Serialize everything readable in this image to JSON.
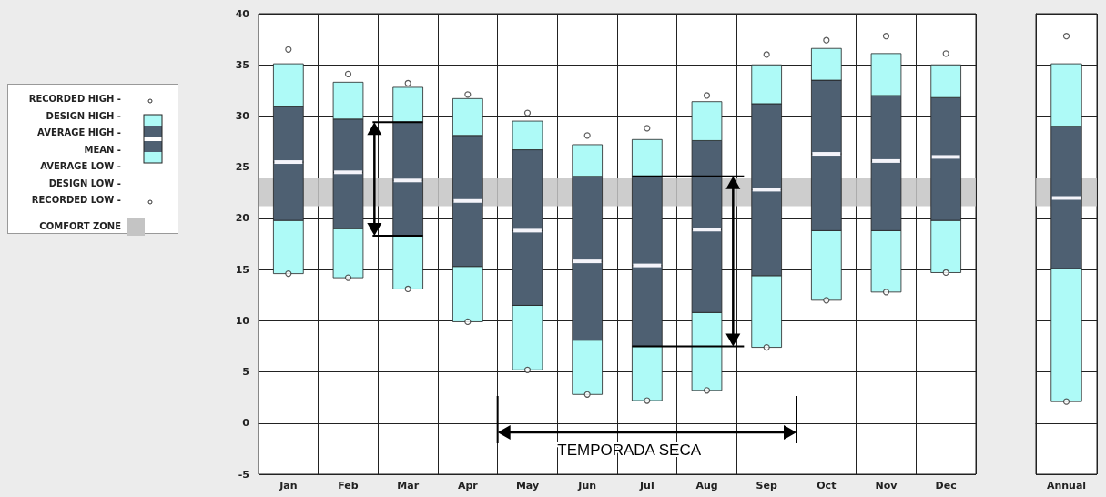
{
  "chart_data": [
    {
      "type": "bar",
      "categories": [
        "Jan",
        "Feb",
        "Mar",
        "Apr",
        "May",
        "Jun",
        "Jul",
        "Aug",
        "Sep",
        "Oct",
        "Nov",
        "Dec"
      ],
      "legend": "left",
      "grid": true,
      "series": [
        {
          "color": "#aefaf7",
          "base": [
            14.6,
            14.2,
            13.1,
            9.9,
            5.2,
            2.8,
            2.2,
            3.2,
            7.4,
            12.0,
            12.8,
            14.7
          ],
          "values": [
            5.2,
            4.8,
            5.2,
            5.4,
            6.3,
            5.3,
            5.3,
            7.6,
            7.0,
            6.8,
            6.0,
            5.1
          ]
        },
        {
          "color": "#4e6072",
          "base": [
            19.8,
            19.0,
            18.3,
            15.3,
            11.5,
            8.1,
            7.5,
            10.8,
            14.4,
            18.8,
            18.8,
            19.8
          ],
          "values": [
            5.7,
            5.5,
            5.4,
            6.4,
            7.3,
            7.7,
            7.9,
            8.1,
            8.4,
            7.5,
            6.8,
            6.2
          ]
        },
        {
          "color": "#4e6072",
          "base": [
            25.5,
            24.5,
            23.7,
            21.7,
            18.8,
            15.8,
            15.4,
            18.9,
            22.8,
            26.3,
            25.6,
            26.0
          ],
          "values": [
            5.4,
            5.2,
            5.7,
            6.4,
            7.9,
            8.3,
            8.7,
            8.7,
            8.4,
            7.2,
            6.4,
            5.8
          ]
        },
        {
          "color": "#aefaf7",
          "base": [
            30.9,
            29.7,
            29.4,
            28.1,
            26.7,
            24.1,
            24.1,
            27.6,
            31.2,
            33.5,
            32.0,
            31.8
          ],
          "values": [
            4.2,
            3.6,
            3.4,
            3.6,
            2.8,
            3.1,
            3.6,
            3.8,
            3.8,
            3.1,
            4.1,
            3.2
          ]
        },
        {
          "type": "scatter",
          "marker": "circle",
          "color": "#333333",
          "x": [
            "Jan",
            "Feb",
            "Mar",
            "Apr",
            "May",
            "Jun",
            "Jul",
            "Aug",
            "Sep",
            "Oct",
            "Nov",
            "Dec"
          ],
          "values": [
            36.5,
            34.1,
            33.2,
            32.1,
            30.3,
            28.1,
            28.8,
            32.0,
            36.0,
            37.4,
            37.8,
            36.1
          ]
        },
        {
          "type": "scatter",
          "marker": "circle",
          "color": "#333333",
          "x": [
            "Jan",
            "Feb",
            "Mar",
            "Apr",
            "May",
            "Jun",
            "Jul",
            "Aug",
            "Sep",
            "Oct",
            "Nov",
            "Dec"
          ],
          "values": [
            14.6,
            14.2,
            13.1,
            9.9,
            5.2,
            2.8,
            2.2,
            3.2,
            7.4,
            12.0,
            12.8,
            14.7
          ]
        }
      ],
      "ylim": [
        -5,
        40
      ],
      "yticks": [
        -5,
        0,
        5,
        10,
        15,
        20,
        25,
        30,
        35,
        40
      ],
      "bands": [
        {
          "axis": "y",
          "from": 21.2,
          "to": 23.9,
          "label": "COMFORT ZONE",
          "color": "#c4c4c4"
        }
      ],
      "annotations": [
        "RECORDED HIGH -",
        "DESIGN HIGH -",
        "AVERAGE HIGH -",
        "MEAN -",
        "AVERAGE LOW -",
        "DESIGN LOW -",
        "RECORDED LOW -",
        "TEMPORADA SECA"
      ]
    },
    {
      "type": "bar",
      "categories": [
        "Annual"
      ],
      "grid": true,
      "tick_labels": "x",
      "series": [
        {
          "color": "#aefaf7",
          "base": [
            2.1
          ],
          "values": [
            13.0
          ]
        },
        {
          "color": "#4e6072",
          "base": [
            15.1
          ],
          "values": [
            6.9
          ]
        },
        {
          "color": "#4e6072",
          "base": [
            22.0
          ],
          "values": [
            7.0
          ]
        },
        {
          "color": "#aefaf7",
          "base": [
            29.0
          ],
          "values": [
            6.1
          ]
        },
        {
          "type": "scatter",
          "marker": "circle",
          "color": "#333333",
          "x": [
            "Annual"
          ],
          "values": [
            37.8
          ]
        },
        {
          "type": "scatter",
          "marker": "circle",
          "color": "#333333",
          "x": [
            "Annual"
          ],
          "values": [
            2.1
          ]
        }
      ],
      "ylim": [
        -5,
        40
      ],
      "yticks": [
        -5,
        0,
        5,
        10,
        15,
        20,
        25,
        30,
        35,
        40
      ],
      "bands": [
        {
          "axis": "y",
          "from": 21.2,
          "to": 23.9,
          "color": "#c4c4c4"
        }
      ]
    }
  ]
}
